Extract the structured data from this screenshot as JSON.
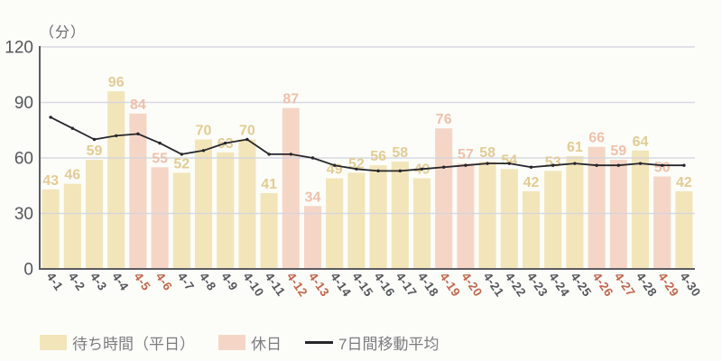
{
  "chart_data": {
    "type": "bar",
    "unit_label": "（分）",
    "ylim": [
      0,
      120
    ],
    "yticks": [
      0,
      30,
      60,
      90,
      120
    ],
    "grid": true,
    "legend_position": "bottom",
    "categories": [
      "4-1",
      "4-2",
      "4-3",
      "4-4",
      "4-5",
      "4-6",
      "4-7",
      "4-8",
      "4-9",
      "4-10",
      "4-11",
      "4-12",
      "4-13",
      "4-14",
      "4-15",
      "4-16",
      "4-17",
      "4-18",
      "4-19",
      "4-20",
      "4-21",
      "4-22",
      "4-23",
      "4-24",
      "4-25",
      "4-26",
      "4-27",
      "4-28",
      "4-29",
      "4-30"
    ],
    "bar_values": [
      43,
      46,
      59,
      96,
      84,
      55,
      52,
      70,
      63,
      70,
      41,
      87,
      34,
      49,
      52,
      56,
      58,
      49,
      76,
      57,
      58,
      54,
      42,
      53,
      61,
      66,
      59,
      64,
      50,
      42
    ],
    "holiday_flags": [
      false,
      false,
      false,
      false,
      true,
      true,
      false,
      false,
      false,
      false,
      false,
      true,
      true,
      false,
      false,
      false,
      false,
      false,
      true,
      true,
      false,
      false,
      false,
      false,
      false,
      true,
      true,
      false,
      true,
      false
    ],
    "series": [
      {
        "name": "待ち時間（平日）",
        "type": "bar",
        "color": "#f2e5b9",
        "label_color": "#e3cc93"
      },
      {
        "name": "休日",
        "type": "bar",
        "color": "#f5d6c6",
        "label_color": "#f0c0aa"
      },
      {
        "name": "7日間移動平均",
        "type": "line",
        "color": "#26262b",
        "values": [
          82,
          76,
          70,
          72,
          73,
          68,
          62,
          64,
          68,
          70,
          62,
          62,
          60,
          56,
          54,
          53,
          53,
          54,
          55,
          56,
          57,
          57,
          55,
          56,
          57,
          56,
          56,
          57,
          56,
          56
        ]
      }
    ],
    "colors": {
      "background": "#fcfdf9",
      "grid": "#d4d4de",
      "axis": "#5b5c60",
      "weekday_tick_label": "#55575c",
      "holiday_tick_label": "#c2664c",
      "y_tick_label": "#55565a",
      "unit_label_color": "#6a6a6e",
      "legend_text": "#7c7c80"
    }
  }
}
